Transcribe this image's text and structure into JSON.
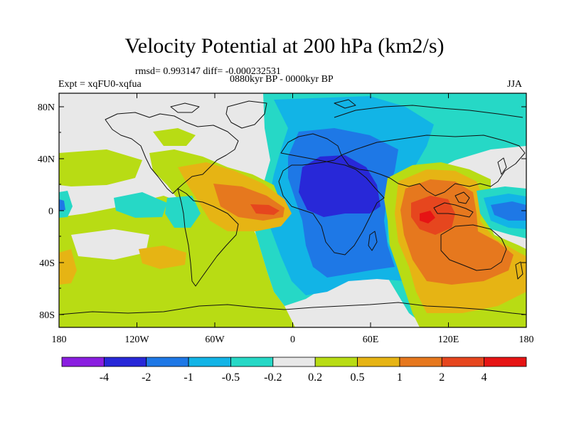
{
  "title": "Velocity Potential at 200 hPa (km2/s)",
  "stats_line": "rmsd= 0.993147 diff= -0.000232531",
  "experiment": "Expt = xqFU0-xqfua",
  "period": "0880kyr BP - 0000kyr BP",
  "season": "JJA",
  "y_ticks": [
    "80N",
    "40N",
    "0",
    "40S",
    "80S"
  ],
  "x_ticks": [
    "180",
    "120W",
    "60W",
    "0",
    "60E",
    "120E",
    "180"
  ],
  "colorbar": {
    "labels": [
      "-4",
      "-2",
      "-1",
      "-0.5",
      "-0.2",
      "0.2",
      "0.5",
      "1",
      "2",
      "4"
    ],
    "colors": [
      "#8a1ee0",
      "#2828d8",
      "#1e78e6",
      "#12b4e6",
      "#26d8c6",
      "#e8e8e8",
      "#b8dc14",
      "#e6b414",
      "#e6781e",
      "#e6461e",
      "#e61414"
    ]
  },
  "palette": {
    "neutral": "#e8e8e8",
    "cyan": "#26d8c6",
    "light_blue": "#12b4e6",
    "blue": "#1e78e6",
    "dark_blue": "#2828d8",
    "yellow_green": "#b8dc14",
    "gold": "#e6b414",
    "orange": "#e6781e",
    "red_orange": "#e6461e"
  }
}
